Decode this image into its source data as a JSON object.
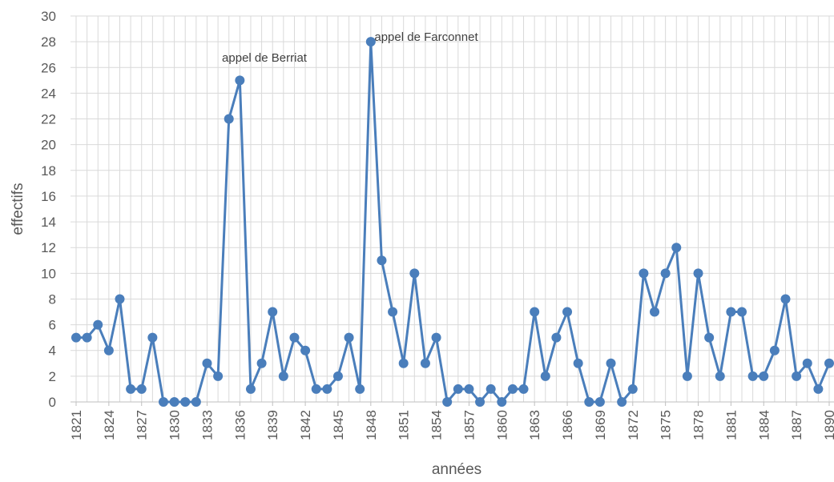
{
  "chart_data": {
    "type": "line",
    "x_label": "années",
    "y_label": "effectifs",
    "annotations": [
      "appel de Berriat",
      "appel de Farconnet"
    ],
    "x": [
      1821,
      1822,
      1823,
      1824,
      1825,
      1826,
      1827,
      1828,
      1829,
      1830,
      1831,
      1832,
      1833,
      1834,
      1835,
      1836,
      1837,
      1838,
      1839,
      1840,
      1841,
      1842,
      1843,
      1844,
      1845,
      1846,
      1847,
      1848,
      1849,
      1850,
      1851,
      1852,
      1853,
      1854,
      1855,
      1856,
      1857,
      1858,
      1859,
      1860,
      1861,
      1862,
      1863,
      1864,
      1865,
      1866,
      1867,
      1868,
      1869,
      1870,
      1871,
      1872,
      1873,
      1874,
      1875,
      1876,
      1877,
      1878,
      1879,
      1880,
      1881,
      1882,
      1883,
      1884,
      1885,
      1886,
      1887,
      1888,
      1889,
      1890
    ],
    "series": [
      {
        "color": "#4a7ebb",
        "values": [
          5,
          5,
          6,
          4,
          8,
          1,
          1,
          5,
          0,
          0,
          0,
          0,
          3,
          2,
          22,
          25,
          1,
          3,
          7,
          2,
          5,
          4,
          1,
          1,
          2,
          5,
          1,
          28,
          11,
          7,
          3,
          10,
          3,
          5,
          0,
          1,
          1,
          0,
          1,
          0,
          1,
          1,
          7,
          2,
          5,
          7,
          3,
          0,
          0,
          3,
          0,
          1,
          10,
          7,
          10,
          12,
          2,
          10,
          5,
          2,
          7,
          7,
          2,
          2,
          4,
          8,
          2,
          3,
          1,
          3
        ]
      }
    ],
    "xlim": [
      1821,
      1890
    ],
    "xticks": [
      1821,
      1824,
      1827,
      1830,
      1833,
      1836,
      1839,
      1842,
      1845,
      1848,
      1851,
      1854,
      1857,
      1860,
      1863,
      1866,
      1869,
      1872,
      1875,
      1878,
      1881,
      1884,
      1887,
      1890
    ],
    "ylim": [
      0,
      30
    ],
    "yticks": [
      0,
      2,
      4,
      6,
      8,
      10,
      12,
      14,
      16,
      18,
      20,
      22,
      24,
      26,
      28,
      30
    ],
    "grid": true
  }
}
